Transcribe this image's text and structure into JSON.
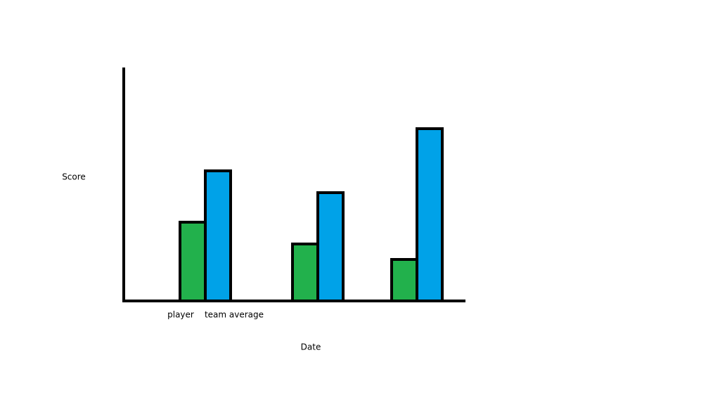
{
  "chart_data": {
    "type": "bar",
    "x_label": "Date",
    "y_label": "Score",
    "categories": [
      null,
      null,
      null
    ],
    "series": [
      {
        "name": "player",
        "color": "#22b14c",
        "values": [
          112,
          81,
          59
        ]
      },
      {
        "name": "team average",
        "color": "#00a2e8",
        "values": [
          185,
          154,
          245
        ]
      }
    ],
    "ylim": [
      0,
      332
    ]
  }
}
